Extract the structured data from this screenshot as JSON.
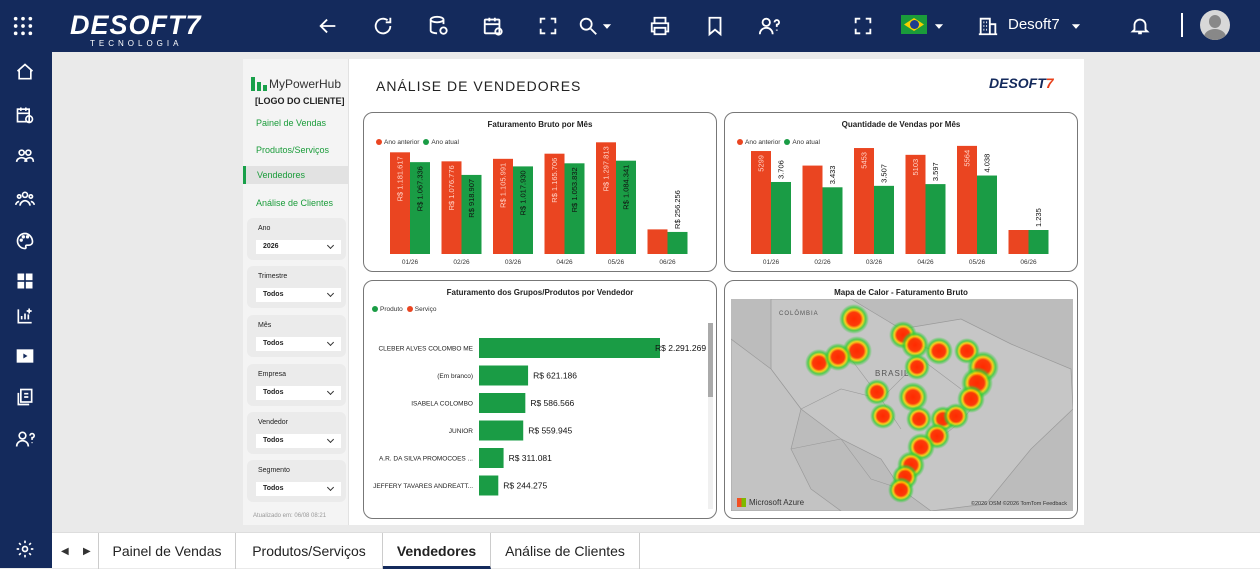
{
  "topbar": {
    "brand_name": "DESOFT7",
    "brand_tagline": "TECNOLOGIA",
    "company": "Desoft7"
  },
  "report": {
    "title": "ANÁLISE DE VENDEDORES",
    "logo_main": "DESOFT",
    "logo_seven": "7",
    "nav_brand": "MyPowerHub",
    "client_logo": "[LOGO DO CLIENTE]",
    "nav": [
      "Painel de Vendas",
      "Produtos/Serviços",
      "Vendedores",
      "Análise de Clientes"
    ],
    "filters": [
      {
        "label": "Ano",
        "value": "2026"
      },
      {
        "label": "Trimestre",
        "value": "Todos"
      },
      {
        "label": "Mês",
        "value": "Todos"
      },
      {
        "label": "Empresa",
        "value": "Todos"
      },
      {
        "label": "Vendedor",
        "value": "Todos"
      },
      {
        "label": "Segmento",
        "value": "Todos"
      }
    ],
    "updated": "Atualizado em: 06/08 08:21"
  },
  "colors": {
    "previous": "#ea4521",
    "current": "#1a9c45"
  },
  "chart_data": [
    {
      "type": "bar",
      "title": "Faturamento Bruto por Mês",
      "legend": [
        "Ano anterior",
        "Ano atual"
      ],
      "categories": [
        "01/26",
        "02/26",
        "03/26",
        "04/26",
        "05/26",
        "06/26"
      ],
      "series": [
        {
          "name": "Ano anterior",
          "values": [
            1181617,
            1076776,
            1105991,
            1165706,
            1297813,
            0
          ],
          "labels": [
            "R$ 1.181.617",
            "R$ 1.076.776",
            "R$ 1.105.991",
            "R$ 1.165.706",
            "R$ 1.297.813",
            ""
          ]
        },
        {
          "name": "Ano atual",
          "values": [
            1067336,
            918907,
            1017930,
            1053832,
            1084341,
            256256
          ],
          "labels": [
            "R$ 1.067.336",
            "R$ 918.907",
            "R$ 1.017.930",
            "R$ 1.053.832",
            "R$ 1.084.341",
            "R$ 256.256"
          ]
        }
      ],
      "prev_last": 286000,
      "ylim": [
        0,
        1400000
      ]
    },
    {
      "type": "bar",
      "title": "Quantidade de Vendas por Mês",
      "legend": [
        "Ano anterior",
        "Ano atual"
      ],
      "categories": [
        "01/26",
        "02/26",
        "03/26",
        "04/26",
        "05/26",
        "06/26"
      ],
      "series": [
        {
          "name": "Ano anterior",
          "values": [
            5299,
            0,
            5453,
            5103,
            5564,
            0
          ],
          "labels": [
            "5299",
            "",
            "5453",
            "5103",
            "5564",
            ""
          ]
        },
        {
          "name": "Ano atual",
          "values": [
            3706,
            3433,
            3507,
            3597,
            4038,
            1235
          ],
          "labels": [
            "3.706",
            "3.433",
            "3.507",
            "3.597",
            "4.038",
            "1.235"
          ]
        }
      ],
      "ylim": [
        0,
        6200
      ]
    },
    {
      "type": "bar",
      "title": "Faturamento dos Grupos/Produtos por Vendedor",
      "legend": [
        "Produto",
        "Serviço"
      ],
      "categories": [
        "CLEBER ALVES COLOMBO ME",
        "(Em branco)",
        "ISABELA COLOMBO",
        "JUNIOR",
        "A.R. DA SILVA PROMOCOES ...",
        "JEFFERY TAVARES ANDREATT..."
      ],
      "values": [
        2291269,
        621186,
        586566,
        559945,
        311081,
        244275
      ],
      "labels": [
        "R$ 2.291.269",
        "R$ 621.186",
        "R$ 586.566",
        "R$ 559.945",
        "R$ 311.081",
        "R$ 244.275"
      ],
      "xlim": [
        0,
        2291269
      ]
    },
    {
      "type": "heatmap",
      "title": "Mapa de Calor - Faturamento Bruto",
      "map_labels": [
        "COLÔMBIA",
        "BRASIL"
      ],
      "attribution_left": "Microsoft Azure",
      "attribution_right": "©2026 OSM ©2026 TomTom Feedback"
    }
  ],
  "tabs": [
    "Painel de Vendas",
    "Produtos/Serviços",
    "Vendedores",
    "Análise de Clientes"
  ]
}
